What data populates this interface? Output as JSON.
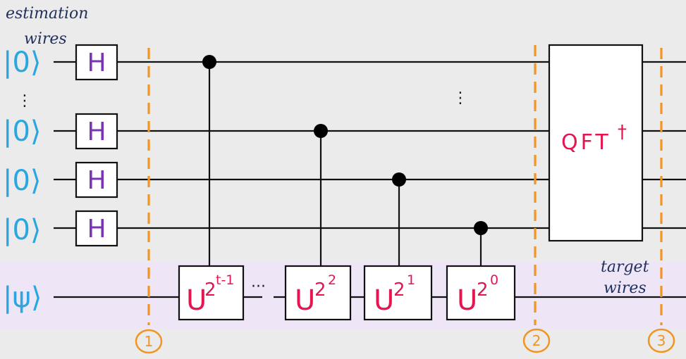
{
  "labels": {
    "estimation_title": "estimation",
    "estimation_sub": "wires",
    "target_title": "target",
    "target_sub": "wires"
  },
  "kets": {
    "zero": "|0⟩",
    "psi": "|ψ⟩"
  },
  "gates": {
    "hadamard": "H",
    "unitary_base": "U",
    "unitary_exponents": [
      "2",
      "2",
      "2",
      "2"
    ],
    "unitary_exponent_powers": [
      "t-1",
      "2",
      "1",
      "0"
    ],
    "qft_label": "QFT",
    "qft_dagger": "†"
  },
  "ellipses": {
    "vertical": "⋮",
    "horizontal": "···"
  },
  "barriers": [
    "1",
    "2",
    "3"
  ],
  "colors": {
    "ket": "#2aa7e0",
    "hadamard": "#7a35b4",
    "unitary": "#e5154f",
    "barrier": "#f29422",
    "handwriting": "#1f2f5c",
    "estimation_band": "#ebebeb",
    "target_band": "#eee6f7"
  }
}
